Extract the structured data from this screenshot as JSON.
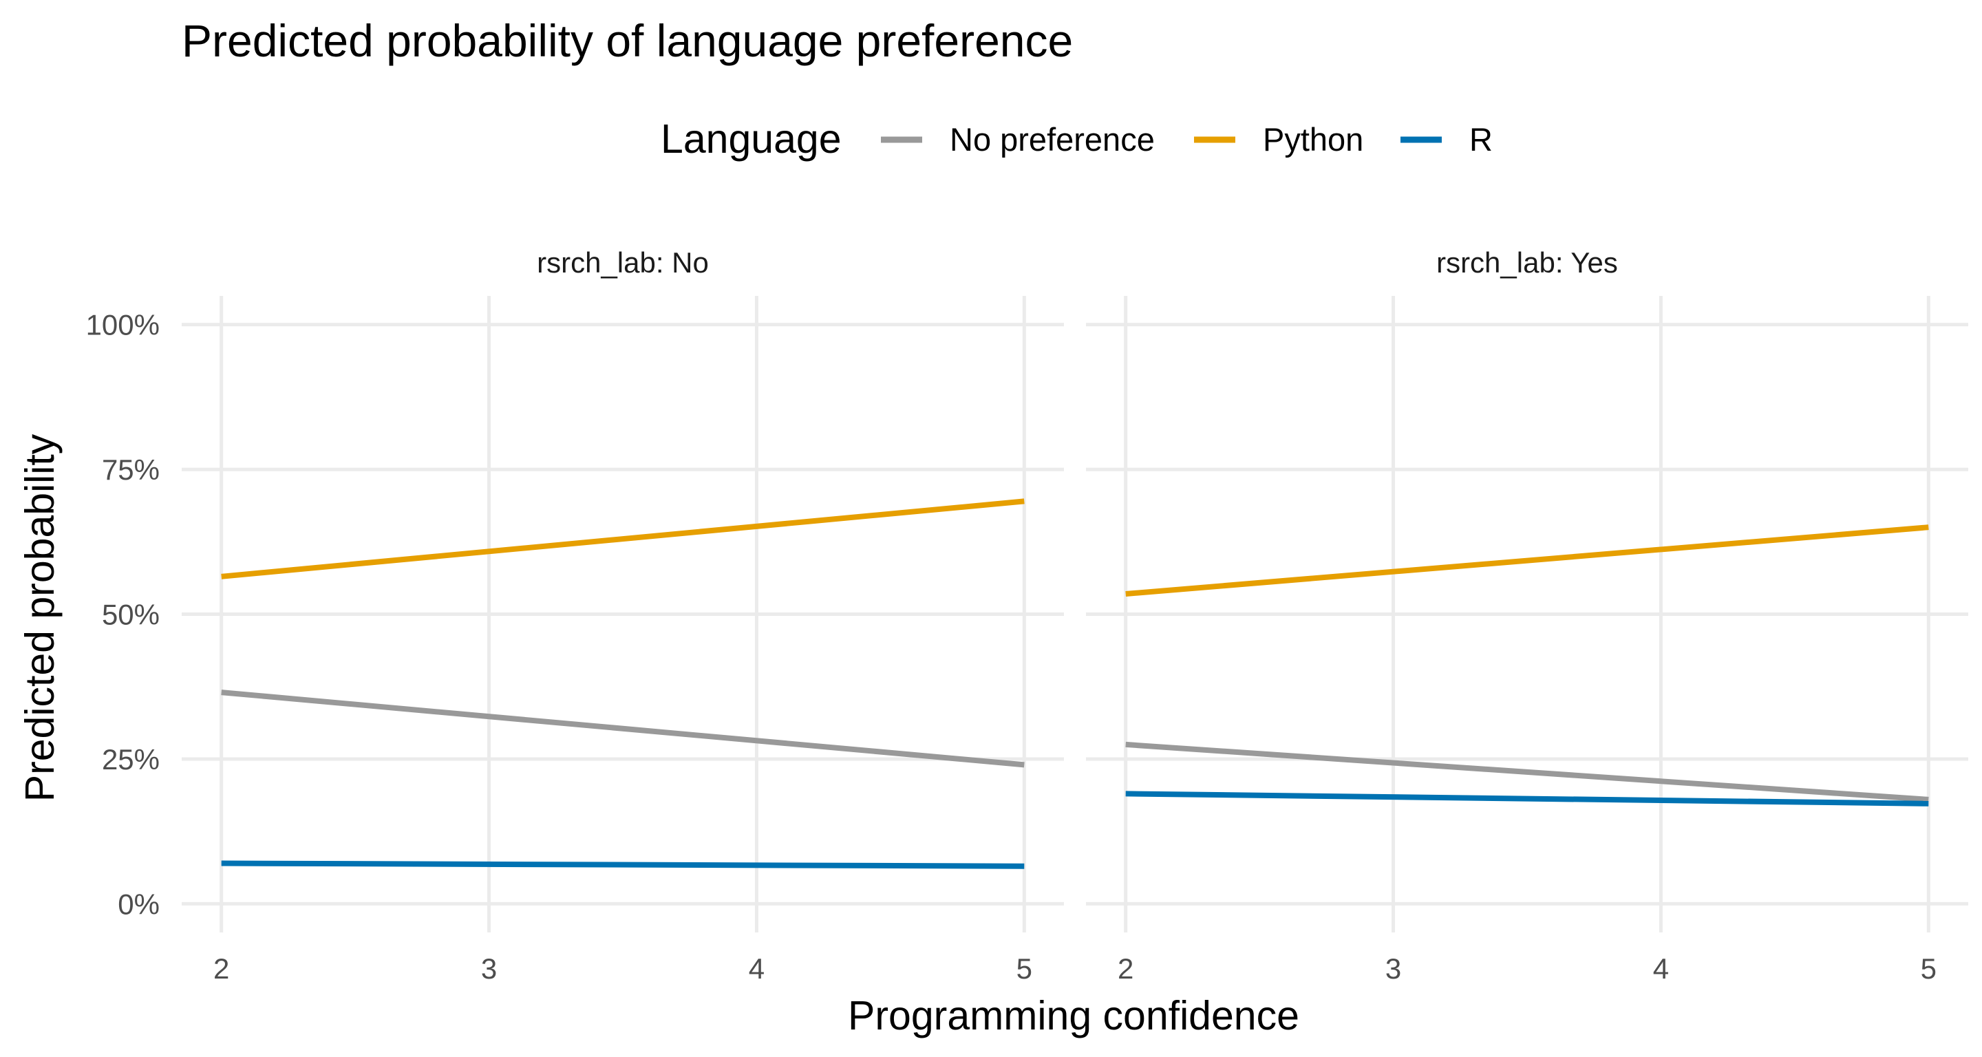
{
  "chart_data": {
    "type": "line",
    "title": "Predicted probability of language preference",
    "xlabel": "Programming confidence",
    "ylabel": "Predicted probability",
    "xlim": [
      2,
      5
    ],
    "ylim": [
      0,
      1
    ],
    "x_ticks": [
      2,
      3,
      4,
      5
    ],
    "y_ticks": [
      0,
      0.25,
      0.5,
      0.75,
      1
    ],
    "y_tick_labels": [
      "0%",
      "25%",
      "50%",
      "75%",
      "100%"
    ],
    "grid": true,
    "legend": {
      "title": "Language",
      "placement": "top",
      "entries": [
        "No preference",
        "Python",
        "R"
      ]
    },
    "colors": {
      "No preference": "#999999",
      "Python": "#E69F00",
      "R": "#0072B2"
    },
    "panels": [
      {
        "label": "rsrch_lab: No",
        "x": [
          2,
          5
        ],
        "series": [
          {
            "name": "No preference",
            "values": [
              0.365,
              0.24
            ]
          },
          {
            "name": "Python",
            "values": [
              0.565,
              0.695
            ]
          },
          {
            "name": "R",
            "values": [
              0.07,
              0.065
            ]
          }
        ]
      },
      {
        "label": "rsrch_lab: Yes",
        "x": [
          2,
          5
        ],
        "series": [
          {
            "name": "No preference",
            "values": [
              0.275,
              0.18
            ]
          },
          {
            "name": "Python",
            "values": [
              0.535,
              0.65
            ]
          },
          {
            "name": "R",
            "values": [
              0.19,
              0.173
            ]
          }
        ]
      }
    ]
  }
}
